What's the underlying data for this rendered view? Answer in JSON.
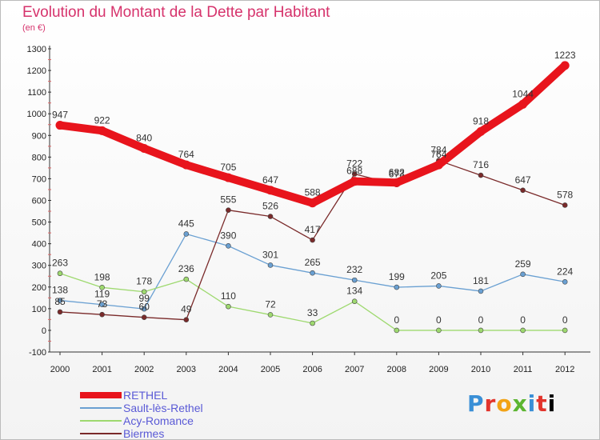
{
  "header": {
    "title": "Evolution du Montant de la Dette par Habitant",
    "subtitle": "(en €)"
  },
  "logo": {
    "letters": [
      "P",
      "r",
      "o",
      "x",
      "i",
      "t",
      "i"
    ],
    "text": "Proxiti"
  },
  "chart_data": {
    "type": "line",
    "x": [
      "2000",
      "2001",
      "2002",
      "2003",
      "2004",
      "2005",
      "2006",
      "2007",
      "2008",
      "2009",
      "2010",
      "2011",
      "2012"
    ],
    "ylim": [
      -100,
      1300
    ],
    "yticks": [
      -100,
      0,
      100,
      200,
      300,
      400,
      500,
      600,
      700,
      800,
      900,
      1000,
      1100,
      1200,
      1300
    ],
    "grid": false,
    "legend_position": "bottom-left",
    "series": [
      {
        "name": "RETHEL",
        "color": "#e8141c",
        "values": [
          947,
          922,
          840,
          764,
          705,
          647,
          588,
          688,
          682,
          764,
          918,
          1044,
          1223
        ],
        "labels": [
          "947",
          "922",
          "840",
          "764",
          "705",
          "647",
          "588",
          "688",
          "682",
          "764",
          "918",
          "1044",
          "1223"
        ],
        "bold": true
      },
      {
        "name": "Sault-lès-Rethel",
        "color": "#6aa0d2",
        "values": [
          138,
          119,
          99,
          445,
          390,
          301,
          265,
          232,
          199,
          205,
          181,
          259,
          224
        ],
        "labels": [
          "138",
          "119",
          "99",
          "445",
          "390",
          "301",
          "265",
          "232",
          "199",
          "205",
          "181",
          "259",
          "224"
        ]
      },
      {
        "name": "Acy-Romance",
        "color": "#9ed96f",
        "values": [
          263,
          198,
          178,
          236,
          110,
          72,
          33,
          134,
          0,
          0,
          0,
          0,
          0
        ],
        "labels": [
          "263",
          "198",
          "178",
          "236",
          "110",
          "72",
          "33",
          "134",
          "0",
          "0",
          "0",
          "0",
          "0"
        ]
      },
      {
        "name": "Biermes",
        "color": "#7a2a2a",
        "values": [
          85,
          73,
          60,
          49,
          555,
          526,
          417,
          722,
          673,
          784,
          716,
          647,
          578
        ],
        "labels": [
          "85",
          "73",
          "60",
          "49",
          "555",
          "526",
          "417",
          "722",
          "673",
          "784",
          "716",
          "647",
          "578"
        ]
      }
    ]
  }
}
